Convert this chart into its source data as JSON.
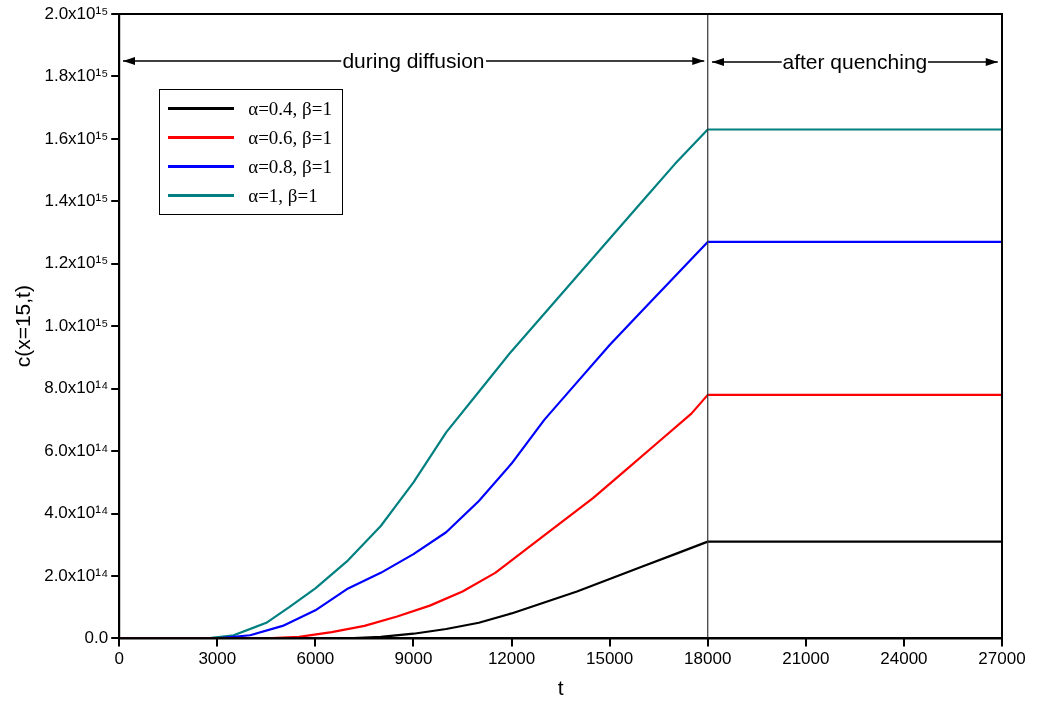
{
  "chart_data": {
    "type": "line",
    "xlabel": "t",
    "ylabel": "c(x=15,t)",
    "xlim": [
      0,
      27000
    ],
    "xticks": [
      0,
      3000,
      6000,
      9000,
      12000,
      15000,
      18000,
      21000,
      24000,
      27000
    ],
    "ylim": [
      0,
      2000000000000000.0
    ],
    "yticks": [
      {
        "value": 0,
        "label": "0.0"
      },
      {
        "value": 200000000000000.0,
        "label": "2.0x10¹⁴"
      },
      {
        "value": 400000000000000.0,
        "label": "4.0x10¹⁴"
      },
      {
        "value": 600000000000000.0,
        "label": "6.0x10¹⁴"
      },
      {
        "value": 800000000000000.0,
        "label": "8.0x10¹⁴"
      },
      {
        "value": 1000000000000000.0,
        "label": "1.0x10¹⁵"
      },
      {
        "value": 1200000000000000.0,
        "label": "1.2x10¹⁵"
      },
      {
        "value": 1400000000000000.0,
        "label": "1.4x10¹⁵"
      },
      {
        "value": 1600000000000000.0,
        "label": "1.6x10¹⁵"
      },
      {
        "value": 1800000000000000.0,
        "label": "1.8x10¹⁵"
      },
      {
        "value": 2000000000000000.0,
        "label": "2.0x10¹⁵"
      }
    ],
    "grid": false,
    "legend": "top left",
    "marker": "none",
    "line_style": "solid",
    "ref_lines": [
      {
        "axis": "x",
        "value": 18000,
        "color": "#333333"
      }
    ],
    "annotations": [
      {
        "text": "during diffusion",
        "x": 18000,
        "y": 1850000000000000.0
      },
      "after quenching"
    ],
    "series": [
      {
        "name": "α=0.4, β=1",
        "color": "#000000",
        "x": [
          0,
          7000,
          8000,
          9000,
          10000,
          11000,
          12000,
          13000,
          14000,
          15000,
          16000,
          17000,
          18000,
          27000
        ],
        "values": [
          0,
          0,
          5000000000000.0,
          15000000000000.0,
          30000000000000.0,
          50000000000000.0,
          80000000000000.0,
          115000000000000.0,
          150000000000000.0,
          190000000000000.0,
          230000000000000.0,
          270000000000000.0,
          310000000000000.0,
          310000000000000.0
        ]
      },
      {
        "name": "α=0.6, β=1",
        "color": "#ff0000",
        "x": [
          0,
          4500,
          5500,
          6500,
          7500,
          8500,
          9500,
          10500,
          11500,
          12500,
          13500,
          14500,
          15500,
          16500,
          17500,
          18000,
          27000
        ],
        "values": [
          0,
          0,
          5000000000000.0,
          20000000000000.0,
          40000000000000.0,
          70000000000000.0,
          105000000000000.0,
          150000000000000.0,
          210000000000000.0,
          290000000000000.0,
          370000000000000.0,
          450000000000000.0,
          540000000000000.0,
          630000000000000.0,
          720000000000000.0,
          780000000000000.0,
          780000000000000.0
        ]
      },
      {
        "name": "α=0.8, β=1",
        "color": "#0000ff",
        "x": [
          0,
          3000,
          4000,
          5000,
          6000,
          7000,
          8000,
          9000,
          10000,
          11000,
          12000,
          13000,
          14000,
          15000,
          16000,
          17000,
          18000,
          27000
        ],
        "values": [
          0,
          0,
          10000000000000.0,
          40000000000000.0,
          90000000000000.0,
          160000000000000.0,
          210000000000000.0,
          270000000000000.0,
          340000000000000.0,
          440000000000000.0,
          560000000000000.0,
          700000000000000.0,
          820000000000000.0,
          940000000000000.0,
          1050000000000000.0,
          1160000000000000.0,
          1270000000000000.0,
          1270000000000000.0
        ]
      },
      {
        "name": "α=1, β=1",
        "color": "#008080",
        "x": [
          0,
          2700,
          3500,
          4500,
          5200,
          6000,
          7000,
          8000,
          9000,
          10000,
          11000,
          12000,
          13000,
          14000,
          15000,
          16000,
          17000,
          18000,
          27000
        ],
        "values": [
          0,
          0,
          10000000000000.0,
          50000000000000.0,
          100000000000000.0,
          160000000000000.0,
          250000000000000.0,
          360000000000000.0,
          500000000000000.0,
          660000000000000.0,
          790000000000000.0,
          920000000000000.0,
          1040000000000000.0,
          1160000000000000.0,
          1280000000000000.0,
          1400000000000000.0,
          1520000000000000.0,
          1630000000000000.0,
          1630000000000000.0
        ]
      }
    ]
  }
}
